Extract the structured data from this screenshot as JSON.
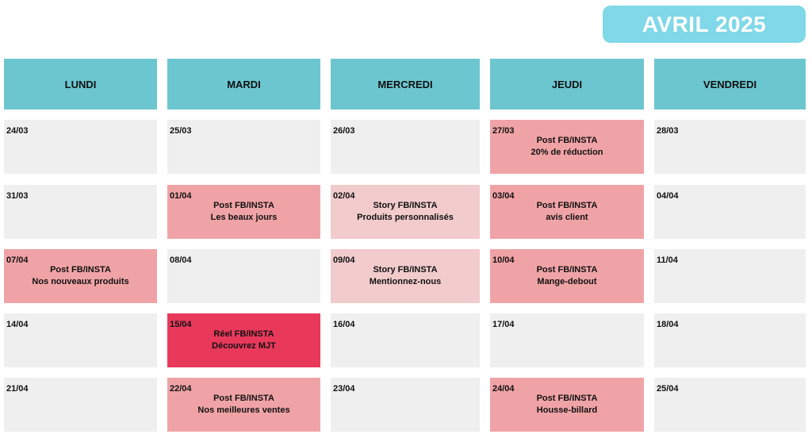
{
  "title": "AVRIL 2025",
  "colors": {
    "title_bg": "#80d8e8",
    "header_bg": "#6cc6d0",
    "empty": "#efefef",
    "post": "#f0a3a6",
    "story": "#f2cbcc",
    "reel": "#e8395b"
  },
  "days": [
    "LUNDI",
    "MARDI",
    "MERCREDI",
    "JEUDI",
    "VENDREDI"
  ],
  "weeks": [
    [
      {
        "date": "24/03",
        "type": "empty",
        "line1": "",
        "line2": ""
      },
      {
        "date": "25/03",
        "type": "empty",
        "line1": "",
        "line2": ""
      },
      {
        "date": "26/03",
        "type": "empty",
        "line1": "",
        "line2": ""
      },
      {
        "date": "27/03",
        "type": "post",
        "line1": "Post FB/INSTA",
        "line2": "20% de réduction"
      },
      {
        "date": "28/03",
        "type": "empty",
        "line1": "",
        "line2": ""
      }
    ],
    [
      {
        "date": "31/03",
        "type": "empty",
        "line1": "",
        "line2": ""
      },
      {
        "date": "01/04",
        "type": "post",
        "line1": "Post FB/INSTA",
        "line2": "Les beaux jours"
      },
      {
        "date": "02/04",
        "type": "story",
        "line1": "Story FB/INSTA",
        "line2": "Produits personnalisés"
      },
      {
        "date": "03/04",
        "type": "post",
        "line1": "Post FB/INSTA",
        "line2": "avis client"
      },
      {
        "date": "04/04",
        "type": "empty",
        "line1": "",
        "line2": ""
      }
    ],
    [
      {
        "date": "07/04",
        "type": "post",
        "line1": "Post FB/INSTA",
        "line2": "Nos nouveaux produits"
      },
      {
        "date": "08/04",
        "type": "empty",
        "line1": "",
        "line2": ""
      },
      {
        "date": "09/04",
        "type": "story",
        "line1": "Story FB/INSTA",
        "line2": "Mentionnez-nous"
      },
      {
        "date": "10/04",
        "type": "post",
        "line1": "Post FB/INSTA",
        "line2": "Mange-debout"
      },
      {
        "date": "11/04",
        "type": "empty",
        "line1": "",
        "line2": ""
      }
    ],
    [
      {
        "date": "14/04",
        "type": "empty",
        "line1": "",
        "line2": ""
      },
      {
        "date": "15/04",
        "type": "reel",
        "line1": "Réel FB/INSTA",
        "line2": "Découvrez MJT"
      },
      {
        "date": "16/04",
        "type": "empty",
        "line1": "",
        "line2": ""
      },
      {
        "date": "17/04",
        "type": "empty",
        "line1": "",
        "line2": ""
      },
      {
        "date": "18/04",
        "type": "empty",
        "line1": "",
        "line2": ""
      }
    ],
    [
      {
        "date": "21/04",
        "type": "empty",
        "line1": "",
        "line2": ""
      },
      {
        "date": "22/04",
        "type": "post",
        "line1": "Post FB/INSTA",
        "line2": "Nos meilleures ventes"
      },
      {
        "date": "23/04",
        "type": "empty",
        "line1": "",
        "line2": ""
      },
      {
        "date": "24/04",
        "type": "post",
        "line1": "Post FB/INSTA",
        "line2": "Housse-billard"
      },
      {
        "date": "25/04",
        "type": "empty",
        "line1": "",
        "line2": ""
      }
    ]
  ]
}
